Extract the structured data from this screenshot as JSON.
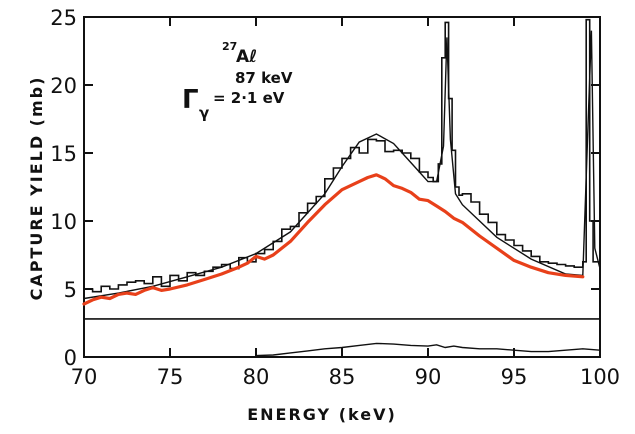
{
  "chart_data": {
    "type": "line",
    "xlabel": "ENERGY  (keV)",
    "ylabel": "CAPTURE YIELD (mb)",
    "xlim": [
      70,
      100
    ],
    "ylim": [
      0,
      25
    ],
    "x_ticks": [
      70,
      75,
      80,
      85,
      90,
      95,
      100
    ],
    "y_ticks": [
      0,
      5,
      10,
      15,
      20,
      25
    ],
    "grid": false,
    "annotations": {
      "isotope_mass": "27",
      "isotope_symbol": "Aℓ",
      "resonance_energy": "87 keV",
      "gamma_symbol": "Γ",
      "gamma_subscript": "γ",
      "gamma_value": "= 2·1 eV"
    },
    "baseline_level": 2.8,
    "series": [
      {
        "style": "histogram",
        "x": [
          70,
          70.5,
          71,
          71.5,
          72,
          72.5,
          73,
          73.5,
          74,
          74.5,
          75,
          75.5,
          76,
          76.5,
          77,
          77.5,
          78,
          78.5,
          79,
          79.5,
          80,
          80.5,
          81,
          81.5,
          82,
          82.5,
          83,
          83.5,
          84,
          84.5,
          85,
          85.5,
          86,
          86.5,
          87,
          87.5,
          88,
          88.5,
          89,
          89.5,
          90,
          90.3,
          90.6,
          90.8,
          91,
          91.2,
          91.4,
          91.6,
          91.8,
          92,
          92.5,
          93,
          93.5,
          94,
          94.5,
          95,
          95.5,
          96,
          96.5,
          97,
          97.5,
          98,
          98.5,
          99,
          99.2,
          99.4,
          99.6
        ],
        "y": [
          5.0,
          4.8,
          5.2,
          5.0,
          5.3,
          5.5,
          5.6,
          5.4,
          5.9,
          5.2,
          6.0,
          5.6,
          6.2,
          6.0,
          6.3,
          6.6,
          6.8,
          6.5,
          7.3,
          7.0,
          7.6,
          7.9,
          8.5,
          9.4,
          9.6,
          10.6,
          11.3,
          11.8,
          13.1,
          13.9,
          14.6,
          15.4,
          15.0,
          16.0,
          15.9,
          15.1,
          15.2,
          15.0,
          14.6,
          13.6,
          13.2,
          12.9,
          14.2,
          22.0,
          24.6,
          19.0,
          15.2,
          12.5,
          11.9,
          12.0,
          11.4,
          10.5,
          9.9,
          9.0,
          8.6,
          8.2,
          7.8,
          7.4,
          7.0,
          6.9,
          6.8,
          6.7,
          6.6,
          7.0,
          24.8,
          10.0,
          7.0
        ]
      },
      {
        "style": "fit",
        "x": [
          70,
          72,
          74,
          76,
          78,
          80,
          82,
          84,
          85,
          86,
          87,
          88,
          89,
          90,
          90.5,
          90.9,
          91.1,
          91.3,
          91.6,
          92,
          94,
          96,
          98,
          99,
          99.3,
          99.5,
          99.7,
          100
        ],
        "y": [
          4.3,
          4.7,
          5.2,
          5.9,
          6.6,
          7.6,
          9.2,
          12.0,
          14.0,
          15.8,
          16.4,
          15.7,
          14.3,
          12.9,
          12.9,
          15.5,
          23.5,
          16.0,
          12.0,
          11.2,
          8.8,
          7.2,
          6.1,
          6.0,
          17.0,
          24.0,
          8.0,
          6.5
        ]
      },
      {
        "style": "orange",
        "x": [
          70,
          70.5,
          71,
          71.5,
          72,
          72.5,
          73,
          73.5,
          74,
          74.5,
          75,
          76,
          77,
          78,
          79,
          79.5,
          80,
          80.5,
          81,
          82,
          83,
          84,
          85,
          86,
          86.5,
          87,
          87.5,
          88,
          88.5,
          89,
          89.5,
          90,
          90.5,
          91,
          91.5,
          92,
          93,
          94,
          95,
          96,
          97,
          98,
          99
        ],
        "y": [
          3.9,
          4.2,
          4.4,
          4.3,
          4.6,
          4.7,
          4.6,
          4.9,
          5.1,
          4.9,
          5.0,
          5.3,
          5.7,
          6.1,
          6.6,
          6.9,
          7.4,
          7.2,
          7.5,
          8.5,
          9.9,
          11.2,
          12.3,
          12.9,
          13.2,
          13.4,
          13.1,
          12.6,
          12.4,
          12.1,
          11.6,
          11.5,
          11.1,
          10.7,
          10.2,
          9.9,
          8.9,
          8.0,
          7.1,
          6.6,
          6.2,
          6.0,
          5.9
        ]
      },
      {
        "style": "residual",
        "x": [
          80,
          81,
          82,
          83,
          84,
          85,
          86,
          87,
          88,
          89,
          90,
          90.5,
          91,
          91.5,
          92,
          93,
          94,
          95,
          96,
          97,
          98,
          99,
          100
        ],
        "y": [
          0.1,
          0.15,
          0.3,
          0.45,
          0.6,
          0.7,
          0.85,
          1.0,
          0.95,
          0.85,
          0.8,
          0.9,
          0.7,
          0.8,
          0.7,
          0.6,
          0.6,
          0.5,
          0.4,
          0.4,
          0.5,
          0.6,
          0.5
        ]
      }
    ]
  }
}
